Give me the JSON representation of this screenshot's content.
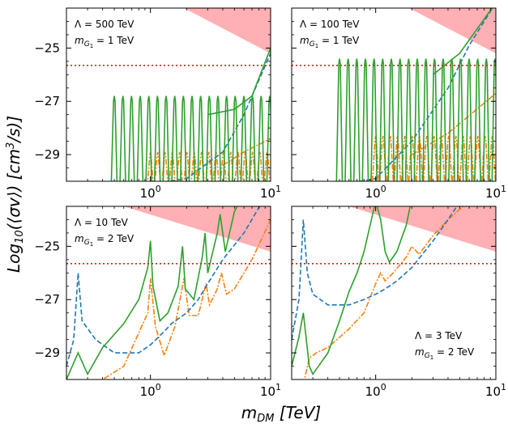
{
  "figure": {
    "xlabel": "m_DM [TeV]",
    "ylabel": "Log10(⟨σv⟩) [cm³/s]"
  },
  "colors": {
    "green": "#2ca02c",
    "orange": "#ff7f0e",
    "blue": "#1f77b4",
    "red": "#e31a1c",
    "shade": "#ffb0b4"
  },
  "chart_data": [
    {
      "type": "line",
      "panel": "top-left",
      "annotations": [
        "Λ = 500 TeV",
        "m_G1 = 1 TeV"
      ],
      "annotation_position": "top-left",
      "xscale": "log",
      "xlim": [
        0.2,
        10
      ],
      "ylim": [
        -30,
        -23.5
      ],
      "yticks": [
        -25,
        -27,
        -29
      ],
      "xticks": [
        1,
        10
      ],
      "xtick_labels": [
        "10^0",
        "10^1"
      ],
      "green_resonances": {
        "count": 20,
        "peak_top": -26.8,
        "start": 0.5,
        "ratio": 1.18,
        "base": -30.5
      },
      "orange_resonances": {
        "count": 20,
        "peak_top": -28.9,
        "start": 1.0,
        "ratio": 1.15,
        "base": -30.2
      },
      "blue_dashed": [
        [
          0.42,
          -30.2
        ],
        [
          1.0,
          -30.1
        ],
        [
          2.0,
          -29.9
        ],
        [
          4.0,
          -28.9
        ],
        [
          6.0,
          -27.5
        ],
        [
          8.0,
          -26.2
        ],
        [
          10.0,
          -25.2
        ]
      ],
      "orange_trend": [
        [
          4.0,
          -29.4
        ],
        [
          6.0,
          -28.9
        ],
        [
          10.0,
          -28.4
        ]
      ],
      "green_trend": [
        [
          3.0,
          -27.5
        ],
        [
          5.0,
          -27.3
        ],
        [
          7.0,
          -26.8
        ],
        [
          10.0,
          -25.0
        ]
      ],
      "red_dotted": -25.65,
      "excluded_region": [
        [
          1.9,
          -23.5
        ],
        [
          10,
          -23.5
        ],
        [
          10,
          -25.2
        ]
      ]
    },
    {
      "type": "line",
      "panel": "top-right",
      "annotations": [
        "Λ = 100 TeV",
        "m_G1 = 1 TeV"
      ],
      "annotation_position": "top-left",
      "xscale": "log",
      "xlim": [
        0.2,
        10
      ],
      "ylim": [
        -30,
        -23.5
      ],
      "yticks": [
        -25,
        -27,
        -29
      ],
      "xticks": [
        1,
        10
      ],
      "xtick_labels": [
        "10^0",
        "10^1"
      ],
      "green_resonances": {
        "count": 20,
        "peak_top": -25.4,
        "start": 0.5,
        "ratio": 1.18,
        "base": -30.5
      },
      "orange_resonances": {
        "count": 18,
        "peak_top": -28.3,
        "start": 1.0,
        "ratio": 1.15,
        "base": -30.0
      },
      "blue_dashed": [
        [
          0.42,
          -30.2
        ],
        [
          1.0,
          -29.9
        ],
        [
          2.0,
          -28.5
        ],
        [
          4.0,
          -26.5
        ],
        [
          6.0,
          -24.9
        ],
        [
          10.0,
          -23.3
        ]
      ],
      "orange_trend": [
        [
          2.0,
          -29.0
        ],
        [
          4.0,
          -28.2
        ],
        [
          10.0,
          -26.7
        ]
      ],
      "green_trend": [
        [
          3.0,
          -26.0
        ],
        [
          5.0,
          -25.2
        ],
        [
          10.0,
          -23.3
        ]
      ],
      "red_dotted": -25.65,
      "excluded_region": [
        [
          1.9,
          -23.5
        ],
        [
          10,
          -23.5
        ],
        [
          10,
          -25.2
        ]
      ]
    },
    {
      "type": "line",
      "panel": "bottom-left",
      "annotations": [
        "Λ = 10 TeV",
        "m_G1 = 2 TeV"
      ],
      "annotation_position": "top-left",
      "xscale": "log",
      "xlim": [
        0.2,
        10
      ],
      "ylim": [
        -30,
        -23.5
      ],
      "yticks": [
        -25,
        -27,
        -29
      ],
      "xticks": [
        1,
        10
      ],
      "xtick_labels": [
        "10^0",
        "10^1"
      ],
      "green": [
        [
          0.2,
          -30.0
        ],
        [
          0.25,
          -29.0
        ],
        [
          0.3,
          -29.8
        ],
        [
          0.4,
          -28.8
        ],
        [
          0.6,
          -27.9
        ],
        [
          0.8,
          -27.0
        ],
        [
          0.95,
          -25.8
        ],
        [
          1.0,
          -24.8
        ],
        [
          1.05,
          -26.5
        ],
        [
          1.2,
          -27.8
        ],
        [
          1.4,
          -27.5
        ],
        [
          1.7,
          -26.5
        ],
        [
          1.85,
          -25.0
        ],
        [
          1.95,
          -26.6
        ],
        [
          2.3,
          -27.0
        ],
        [
          2.7,
          -25.4
        ],
        [
          2.85,
          -24.5
        ],
        [
          3.0,
          -26.0
        ],
        [
          3.6,
          -24.5
        ],
        [
          3.8,
          -23.8
        ],
        [
          4.2,
          -25.2
        ],
        [
          5.0,
          -23.7
        ],
        [
          6.0,
          -23.0
        ]
      ],
      "orange": [
        [
          0.28,
          -30.2
        ],
        [
          0.4,
          -30.0
        ],
        [
          0.6,
          -29.5
        ],
        [
          0.95,
          -27.5
        ],
        [
          1.0,
          -26.2
        ],
        [
          1.1,
          -28.0
        ],
        [
          1.3,
          -29.1
        ],
        [
          1.6,
          -28.0
        ],
        [
          1.9,
          -26.2
        ],
        [
          2.1,
          -27.6
        ],
        [
          2.5,
          -27.6
        ],
        [
          2.9,
          -26.4
        ],
        [
          3.1,
          -27.2
        ],
        [
          3.6,
          -26.6
        ],
        [
          3.9,
          -26.0
        ],
        [
          4.3,
          -26.8
        ],
        [
          5.0,
          -26.6
        ],
        [
          7.0,
          -25.5
        ],
        [
          10.0,
          -24.0
        ]
      ],
      "blue_dashed": [
        [
          0.2,
          -29.5
        ],
        [
          0.23,
          -28.5
        ],
        [
          0.25,
          -26.0
        ],
        [
          0.27,
          -27.8
        ],
        [
          0.35,
          -28.5
        ],
        [
          0.5,
          -29.0
        ],
        [
          0.8,
          -29.0
        ],
        [
          1.0,
          -28.7
        ],
        [
          1.3,
          -28.2
        ],
        [
          1.5,
          -27.9
        ],
        [
          2.0,
          -27.5
        ],
        [
          2.5,
          -27.0
        ],
        [
          3.0,
          -26.4
        ],
        [
          4.0,
          -25.5
        ],
        [
          6.0,
          -24.5
        ],
        [
          10.0,
          -22.8
        ]
      ],
      "red_dotted": -25.65,
      "excluded_region": [
        [
          0.6,
          -23.5
        ],
        [
          10,
          -23.5
        ],
        [
          10,
          -25.2
        ]
      ]
    },
    {
      "type": "line",
      "panel": "bottom-right",
      "annotations": [
        "Λ = 3 TeV",
        "m_G1 = 2 TeV"
      ],
      "annotation_position": "bottom-right",
      "xscale": "log",
      "xlim": [
        0.2,
        10
      ],
      "ylim": [
        -30,
        -23.5
      ],
      "yticks": [
        -25,
        -27,
        -29
      ],
      "xticks": [
        1,
        10
      ],
      "xtick_labels": [
        "10^0",
        "10^1"
      ],
      "green": [
        [
          0.2,
          -29.5
        ],
        [
          0.23,
          -28.4
        ],
        [
          0.25,
          -27.5
        ],
        [
          0.28,
          -29.5
        ],
        [
          0.3,
          -29.8
        ],
        [
          0.4,
          -29.0
        ],
        [
          0.5,
          -27.8
        ],
        [
          0.6,
          -26.7
        ],
        [
          0.7,
          -26.0
        ],
        [
          0.8,
          -25.2
        ],
        [
          0.9,
          -24.2
        ],
        [
          1.0,
          -23.3
        ],
        [
          1.1,
          -24.0
        ],
        [
          1.2,
          -25.2
        ],
        [
          1.3,
          -25.6
        ],
        [
          1.5,
          -25.2
        ],
        [
          1.8,
          -24.2
        ],
        [
          2.0,
          -23.2
        ]
      ],
      "orange": [
        [
          0.25,
          -30.2
        ],
        [
          0.28,
          -29.2
        ],
        [
          0.32,
          -29.0
        ],
        [
          0.4,
          -28.8
        ],
        [
          0.6,
          -28.1
        ],
        [
          0.8,
          -27.5
        ],
        [
          1.0,
          -26.4
        ],
        [
          1.1,
          -26.0
        ],
        [
          1.2,
          -26.3
        ],
        [
          1.4,
          -26.0
        ],
        [
          1.8,
          -25.4
        ],
        [
          2.0,
          -25.0
        ],
        [
          2.3,
          -25.3
        ],
        [
          3.0,
          -24.6
        ],
        [
          4.0,
          -24.0
        ],
        [
          6.0,
          -23.3
        ],
        [
          7.0,
          -23.0
        ]
      ],
      "blue_dashed": [
        [
          0.2,
          -28.5
        ],
        [
          0.23,
          -27.0
        ],
        [
          0.25,
          -24.0
        ],
        [
          0.27,
          -26.0
        ],
        [
          0.3,
          -26.8
        ],
        [
          0.4,
          -27.2
        ],
        [
          0.6,
          -27.2
        ],
        [
          0.8,
          -27.0
        ],
        [
          1.0,
          -26.8
        ],
        [
          1.2,
          -26.6
        ],
        [
          1.5,
          -26.3
        ],
        [
          2.0,
          -25.8
        ],
        [
          3.0,
          -24.8
        ],
        [
          4.0,
          -24.0
        ],
        [
          6.0,
          -22.8
        ]
      ],
      "red_dotted": -25.65,
      "excluded_region": [
        [
          0.6,
          -23.5
        ],
        [
          10,
          -23.5
        ],
        [
          10,
          -25.2
        ]
      ]
    }
  ]
}
